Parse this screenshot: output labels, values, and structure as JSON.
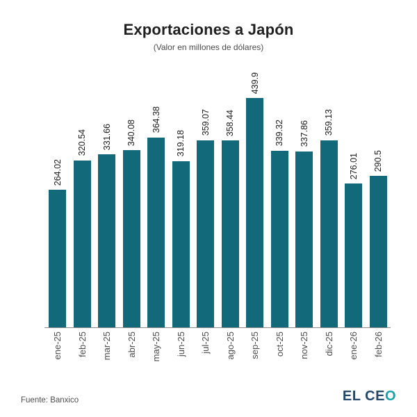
{
  "header": {
    "title": "Exportaciones a Japón",
    "subtitle": "(Valor en millones de dólares)"
  },
  "chart_data": {
    "type": "bar",
    "title": "Exportaciones a Japón",
    "subtitle": "(Valor en millones de dólares)",
    "categories": [
      "ene-25",
      "feb-25",
      "mar-25",
      "abr-25",
      "may-25",
      "jun-25",
      "jul-25",
      "ago-25",
      "sep-25",
      "oct-25",
      "nov-25",
      "dic-25",
      "ene-26",
      "feb-26"
    ],
    "values": [
      264.02,
      320.54,
      331.66,
      340.08,
      364.38,
      319.18,
      359.07,
      358.44,
      439.9,
      339.32,
      337.86,
      359.13,
      276.01,
      290.5
    ],
    "value_labels": [
      "264.02",
      "320.54",
      "331.66",
      "340.08",
      "364.38",
      "319.18",
      "359.07",
      "358.44",
      "439.9",
      "339.32",
      "337.86",
      "359.13",
      "276.01",
      "290.5"
    ],
    "bar_color": "#11697a",
    "label_rotation_deg": 90,
    "xlabel": "",
    "ylabel": "",
    "ylim": [
      0,
      440
    ],
    "grid": false,
    "legend": "none",
    "y_axis_visible": false
  },
  "footer": {
    "source": "Fuente: Banxico",
    "logo_main": "EL CE",
    "logo_accent": "O"
  },
  "colors": {
    "bar": "#11697a",
    "axis": "#8a8a8a",
    "logo_navy": "#24476a",
    "logo_teal": "#17a3ab"
  }
}
